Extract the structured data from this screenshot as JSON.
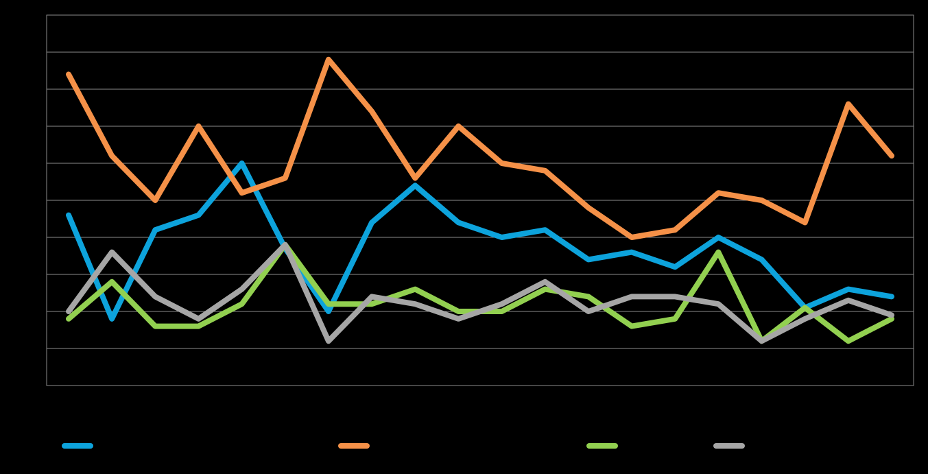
{
  "chart_data": {
    "type": "line",
    "categories": [
      null,
      null,
      null,
      null,
      null,
      null,
      null,
      null,
      null,
      null,
      null,
      null,
      null,
      null,
      null,
      null,
      null,
      null,
      null,
      null
    ],
    "series": [
      {
        "color": "#0da3dc",
        "values": [
          4.6,
          1.8,
          4.2,
          4.6,
          6.0,
          3.7,
          2.0,
          4.4,
          5.4,
          4.4,
          4.0,
          4.2,
          3.4,
          3.6,
          3.2,
          4.0,
          3.4,
          2.1,
          2.6,
          2.4
        ]
      },
      {
        "color": "#f59148",
        "values": [
          8.4,
          6.2,
          5.0,
          7.0,
          5.2,
          5.6,
          8.8,
          7.4,
          5.6,
          7.0,
          6.0,
          5.8,
          4.8,
          4.0,
          4.2,
          5.2,
          5.0,
          4.4,
          7.6,
          6.2
        ]
      },
      {
        "color": "#92d050",
        "values": [
          1.8,
          2.8,
          1.6,
          1.6,
          2.2,
          3.8,
          2.2,
          2.2,
          2.6,
          2.0,
          2.0,
          2.6,
          2.4,
          1.6,
          1.8,
          3.6,
          1.2,
          2.1,
          1.2,
          1.8
        ]
      },
      {
        "color": "#a6a6a6",
        "values": [
          2.0,
          3.6,
          2.4,
          1.8,
          2.6,
          3.8,
          1.2,
          2.4,
          2.2,
          1.8,
          2.2,
          2.8,
          2.0,
          2.4,
          2.4,
          2.2,
          1.2,
          1.8,
          2.3,
          1.9
        ]
      }
    ],
    "ylim": [
      0,
      10
    ],
    "yticks": [
      0,
      1,
      2,
      3,
      4,
      5,
      6,
      7,
      8,
      9,
      10
    ],
    "grid": true
  }
}
